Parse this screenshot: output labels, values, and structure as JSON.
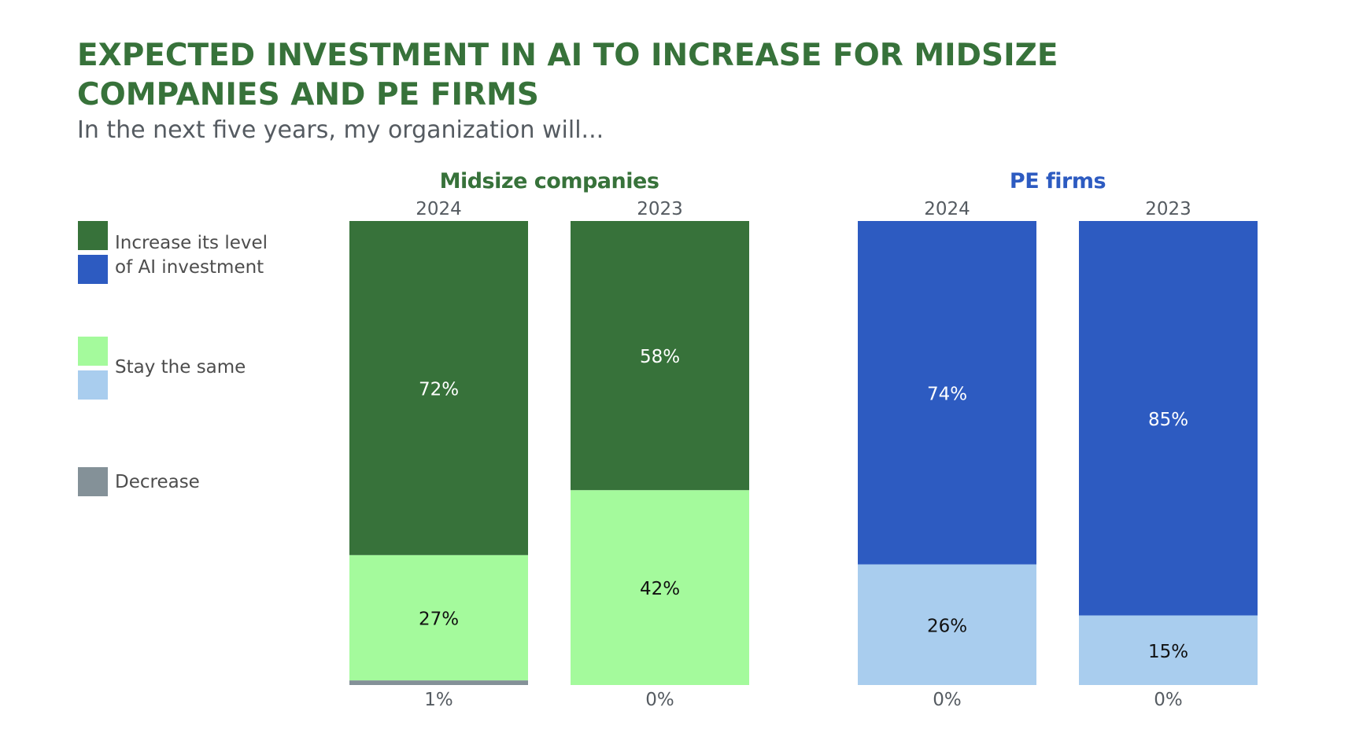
{
  "title": "EXPECTED INVESTMENT IN AI TO INCREASE FOR MIDSIZE COMPANIES AND PE FIRMS",
  "subtitle": "In the next five years, my organization will...",
  "legend": [
    {
      "label_line1": "Increase its level",
      "label_line2": "of AI investment",
      "colors": [
        "#37723a",
        "#2d5bc1"
      ]
    },
    {
      "label": "Stay the same",
      "colors": [
        "#a4fa9c",
        "#a9cdee"
      ]
    },
    {
      "label": "Decrease",
      "colors": [
        "#849198"
      ]
    }
  ],
  "chart_data": [
    {
      "type": "bar",
      "stacked": true,
      "title": "Midsize companies",
      "title_color": "#37723a",
      "categories": [
        "2024",
        "2023"
      ],
      "series": [
        {
          "name": "Decrease",
          "values": [
            1,
            0
          ],
          "labels": [
            "1%",
            "0%"
          ],
          "color": "#849198",
          "label_color": "#555b61"
        },
        {
          "name": "Stay the same",
          "values": [
            27,
            42
          ],
          "labels": [
            "27%",
            "42%"
          ],
          "color": "#a4fa9c",
          "label_color": "#111111"
        },
        {
          "name": "Increase its level of AI investment",
          "values": [
            72,
            58
          ],
          "labels": [
            "72%",
            "58%"
          ],
          "color": "#37723a",
          "label_color": "#ffffff"
        }
      ],
      "ylim": [
        0,
        100
      ]
    },
    {
      "type": "bar",
      "stacked": true,
      "title": "PE firms",
      "title_color": "#2d5bc1",
      "categories": [
        "2024",
        "2023"
      ],
      "series": [
        {
          "name": "Decrease",
          "values": [
            0,
            0
          ],
          "labels": [
            "0%",
            "0%"
          ],
          "color": "#849198",
          "label_color": "#555b61"
        },
        {
          "name": "Stay the same",
          "values": [
            26,
            15
          ],
          "labels": [
            "26%",
            "15%"
          ],
          "color": "#a9cdee",
          "label_color": "#111111"
        },
        {
          "name": "Increase its level of AI investment",
          "values": [
            74,
            85
          ],
          "labels": [
            "74%",
            "85%"
          ],
          "color": "#2d5bc1",
          "label_color": "#ffffff"
        }
      ],
      "ylim": [
        0,
        100
      ]
    }
  ]
}
